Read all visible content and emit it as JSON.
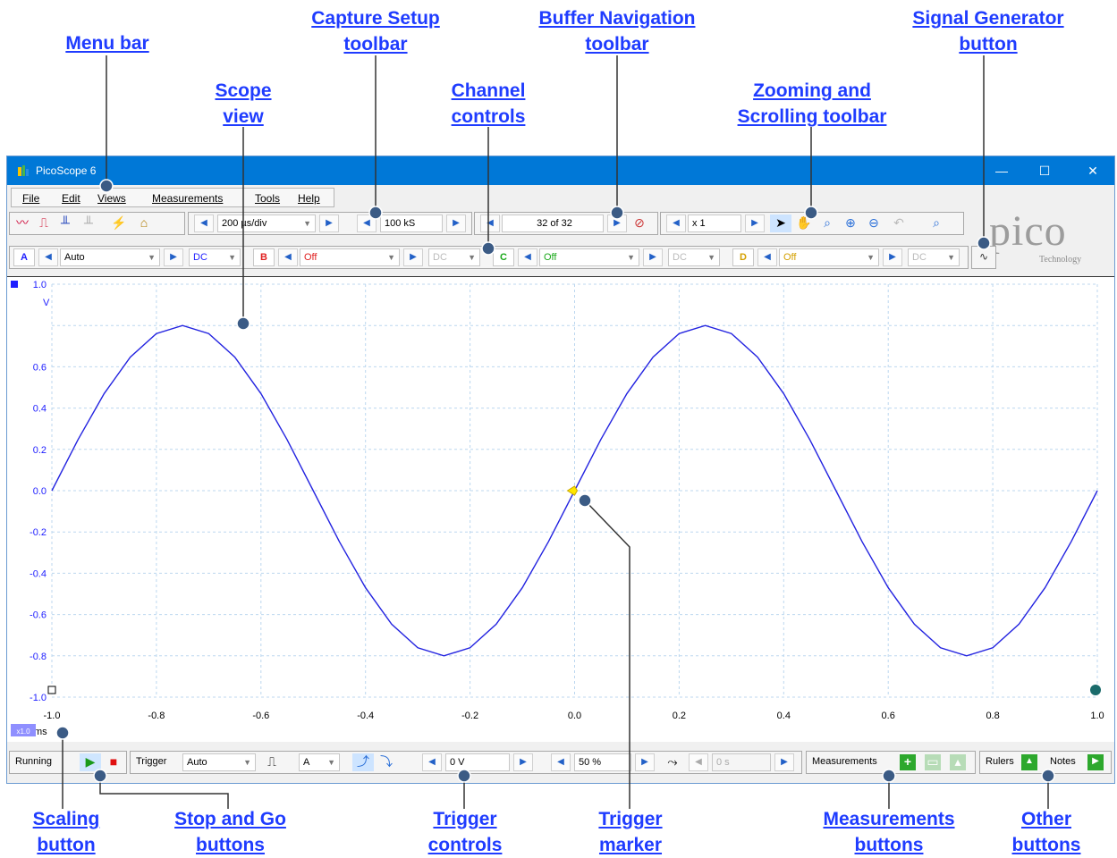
{
  "callouts": {
    "menu_bar": [
      "Menu bar"
    ],
    "capture_setup": [
      "Capture Setup",
      "toolbar"
    ],
    "buffer_nav": [
      "Buffer Navigation",
      "toolbar"
    ],
    "signal_gen": [
      "Signal Generator",
      "button"
    ],
    "scope_view": [
      "Scope",
      "view"
    ],
    "channel_controls": [
      "Channel",
      "controls"
    ],
    "zooming": [
      "Zooming and",
      "Scrolling toolbar"
    ],
    "scaling": [
      "Scaling",
      "button"
    ],
    "stop_go": [
      "Stop and Go",
      "buttons"
    ],
    "trigger_controls": [
      "Trigger",
      "controls"
    ],
    "trigger_marker": [
      "Trigger",
      "marker"
    ],
    "measurements_buttons": [
      "Measurements",
      "buttons"
    ],
    "other_buttons": [
      "Other",
      "buttons"
    ]
  },
  "window": {
    "title": "PicoScope 6",
    "minimize": "—",
    "maximize": "☐",
    "close": "✕"
  },
  "menu": [
    "File",
    "Edit",
    "Views",
    "Measurements",
    "Tools",
    "Help"
  ],
  "capture": {
    "timebase": "200 µs/div",
    "samples": "100 kS"
  },
  "buffer": {
    "position": "32 of 32"
  },
  "zoom": {
    "factor": "x 1"
  },
  "channels": [
    {
      "name": "A",
      "range": "Auto",
      "coupling": "DC",
      "color": "#1f1fff"
    },
    {
      "name": "B",
      "range": "Off",
      "coupling": "DC",
      "color": "#e02020"
    },
    {
      "name": "C",
      "range": "Off",
      "coupling": "DC",
      "color": "#1aa81a"
    },
    {
      "name": "D",
      "range": "Off",
      "coupling": "DC",
      "color": "#d4a000"
    }
  ],
  "logo": {
    "main": "pico",
    "sub": "Technology"
  },
  "bottom": {
    "status": "Running",
    "trigger_label": "Trigger",
    "trigger_mode": "Auto",
    "trigger_channel": "A",
    "trigger_threshold": "0 V",
    "pre_trigger": "50 %",
    "delay": "0 s",
    "measurements_label": "Measurements",
    "rulers_label": "Rulers",
    "notes_label": "Notes"
  },
  "axis": {
    "y_unit": "V",
    "x_unit": "ms",
    "scale_badge": "x1.0",
    "y_ticks": [
      "1.0",
      "0.6",
      "0.4",
      "0.2",
      "0.0",
      "-0.2",
      "-0.4",
      "-0.6",
      "-0.8",
      "-1.0"
    ],
    "x_ticks": [
      "-1.0",
      "-0.8",
      "-0.6",
      "-0.4",
      "-0.2",
      "0.0",
      "0.2",
      "0.4",
      "0.6",
      "0.8",
      "1.0"
    ]
  },
  "chart_data": {
    "type": "line",
    "xlim": [
      -1.0,
      1.0
    ],
    "ylim": [
      -1.0,
      1.0
    ],
    "xlabel": "ms",
    "ylabel": "V",
    "grid": true,
    "series": [
      {
        "color": "#2323e0",
        "x": [
          -1.0,
          -0.95,
          -0.9,
          -0.85,
          -0.8,
          -0.75,
          -0.7,
          -0.65,
          -0.6,
          -0.55,
          -0.5,
          -0.45,
          -0.4,
          -0.35,
          -0.3,
          -0.25,
          -0.2,
          -0.15,
          -0.1,
          -0.05,
          0.0,
          0.05,
          0.1,
          0.15,
          0.2,
          0.25,
          0.3,
          0.35,
          0.4,
          0.45,
          0.5,
          0.55,
          0.6,
          0.65,
          0.7,
          0.75,
          0.8,
          0.85,
          0.9,
          0.95,
          1.0
        ],
        "y": [
          0.0,
          0.247,
          0.47,
          0.647,
          0.761,
          0.8,
          0.761,
          0.647,
          0.47,
          0.247,
          0.0,
          -0.247,
          -0.47,
          -0.647,
          -0.761,
          -0.8,
          -0.761,
          -0.647,
          -0.47,
          -0.247,
          0.0,
          0.247,
          0.47,
          0.647,
          0.761,
          0.8,
          0.761,
          0.647,
          0.47,
          0.247,
          0.0,
          -0.247,
          -0.47,
          -0.647,
          -0.761,
          -0.8,
          -0.761,
          -0.647,
          -0.47,
          -0.247,
          0.0
        ]
      }
    ],
    "trigger_marker": {
      "x": 0.0,
      "y": 0.0
    }
  }
}
